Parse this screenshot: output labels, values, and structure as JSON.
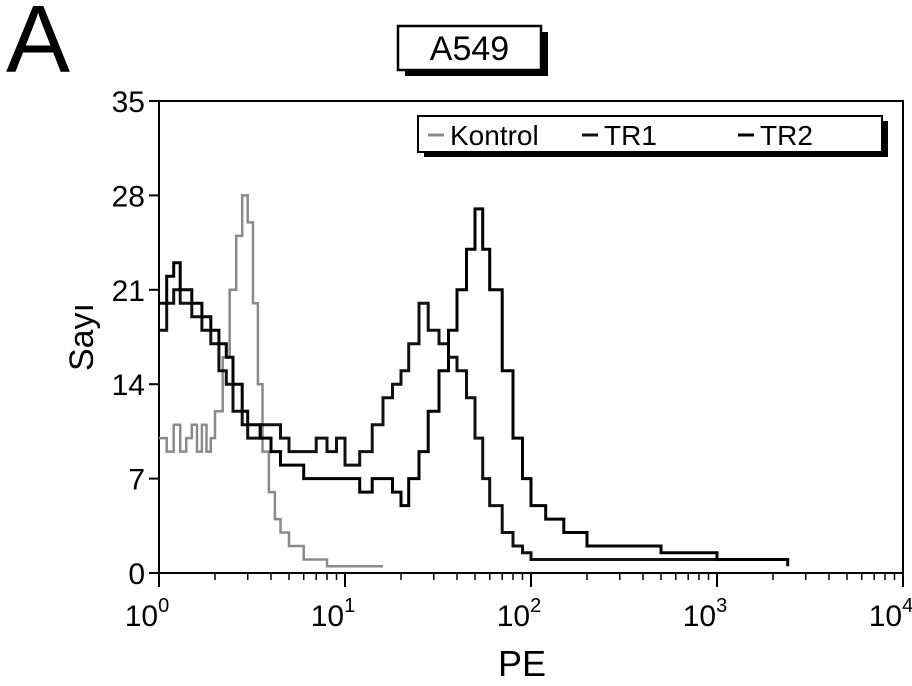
{
  "panel_label": "A",
  "chart_data": {
    "type": "line",
    "title": "A549",
    "xlabel": "PE",
    "ylabel": "Sayı",
    "xscale": "log",
    "xlim": [
      1,
      10000
    ],
    "ylim": [
      0,
      35
    ],
    "yticks": [
      0,
      7,
      14,
      21,
      28,
      35
    ],
    "xticks": [
      {
        "value": 1,
        "base": "10",
        "exp": "0"
      },
      {
        "value": 10,
        "base": "10",
        "exp": "1"
      },
      {
        "value": 100,
        "base": "10",
        "exp": "2"
      },
      {
        "value": 1000,
        "base": "10",
        "exp": "3"
      },
      {
        "value": 10000,
        "base": "10",
        "exp": "4"
      }
    ],
    "grid": false,
    "legend_position": "top-right",
    "series": [
      {
        "name": "Kontrol",
        "color": "#8a8a8a",
        "x": [
          1.0,
          1.1,
          1.2,
          1.3,
          1.4,
          1.5,
          1.6,
          1.7,
          1.8,
          1.9,
          2.0,
          2.2,
          2.4,
          2.6,
          2.8,
          3.0,
          3.2,
          3.4,
          3.6,
          3.9,
          4.2,
          4.5,
          5.0,
          5.5,
          6.0,
          6.5,
          7.0,
          8.0,
          9.0,
          10.0,
          12.0,
          14.0,
          16.0
        ],
        "y": [
          10,
          9,
          11,
          9,
          10,
          11,
          9,
          11,
          9,
          10,
          12,
          16,
          21,
          25,
          28,
          26,
          20,
          14,
          9,
          6,
          4,
          3,
          2,
          2,
          1,
          1,
          1,
          0.5,
          0.5,
          0.5,
          0.5,
          0.5,
          0.5
        ]
      },
      {
        "name": "TR1",
        "color": "#111111",
        "x": [
          1.0,
          1.1,
          1.2,
          1.3,
          1.5,
          1.7,
          1.9,
          2.1,
          2.3,
          2.5,
          2.8,
          3.0,
          3.5,
          4.0,
          4.5,
          5.0,
          6.0,
          7.0,
          8.0,
          9.0,
          10.0,
          12.0,
          14.0,
          16.0,
          18.0,
          20.0,
          22.0,
          25.0,
          28.0,
          32.0,
          36.0,
          40.0,
          45.0,
          50.0,
          55.0,
          60.0,
          70.0,
          80.0,
          90.0,
          100.0,
          120.0,
          150.0,
          200.0,
          300.0,
          500.0,
          800.0,
          1000.0
        ],
        "y": [
          18,
          20,
          21,
          20,
          19,
          18,
          17,
          15,
          14,
          12,
          11,
          10,
          11,
          11,
          10,
          9,
          9,
          10,
          9,
          10,
          8,
          9,
          11,
          13,
          14,
          15,
          17,
          20,
          18,
          17,
          16,
          15,
          13,
          10,
          7,
          5,
          3,
          2,
          1.5,
          1,
          1,
          1,
          1,
          1,
          1,
          1,
          1
        ]
      },
      {
        "name": "TR2",
        "color": "#000000",
        "x": [
          1.0,
          1.1,
          1.2,
          1.3,
          1.5,
          1.7,
          1.9,
          2.1,
          2.3,
          2.5,
          2.8,
          3.0,
          3.5,
          4.0,
          4.5,
          5.0,
          6.0,
          7.0,
          8.0,
          9.0,
          10.0,
          12.0,
          14.0,
          16.0,
          18.0,
          20.0,
          22.0,
          25.0,
          28.0,
          32.0,
          36.0,
          40.0,
          45.0,
          50.0,
          55.0,
          60.0,
          70.0,
          80.0,
          90.0,
          100.0,
          120.0,
          150.0,
          200.0,
          300.0,
          500.0,
          800.0,
          1000.0,
          2000.0,
          2400.0
        ],
        "y": [
          20,
          22,
          23,
          21,
          20,
          19,
          18,
          17,
          16,
          14,
          12,
          11,
          10,
          9,
          8,
          8,
          7,
          7,
          7,
          7,
          7,
          6,
          7,
          7,
          6,
          5,
          7,
          9,
          12,
          15,
          18,
          21,
          24,
          27,
          24,
          21,
          15,
          10,
          7,
          5,
          4,
          3,
          2,
          2,
          1.5,
          1.5,
          1,
          1,
          0.5
        ]
      }
    ]
  }
}
